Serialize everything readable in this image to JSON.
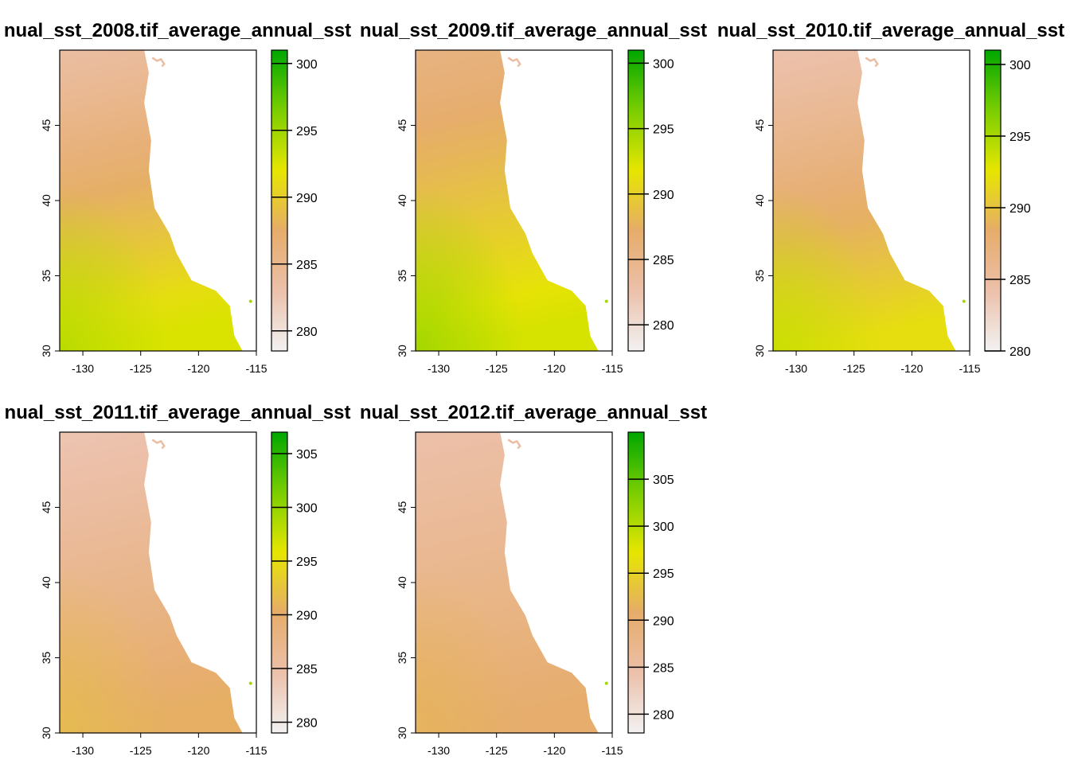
{
  "chart_data": [
    {
      "type": "heatmap",
      "title": "nual_sst_2008.tif_average_annual_sst",
      "x_ticks": [
        -130,
        -125,
        -120,
        -115
      ],
      "y_ticks": [
        30,
        35,
        40,
        45
      ],
      "xlim": [
        -132,
        -115
      ],
      "ylim": [
        30,
        50
      ],
      "legend": {
        "range": [
          278.5,
          301
        ],
        "ticks": [
          280,
          285,
          290,
          295,
          300
        ]
      },
      "field": {
        "north_value": 283.5,
        "south_value": 292.5,
        "west_shift": 0.5
      }
    },
    {
      "type": "heatmap",
      "title": "nual_sst_2009.tif_average_annual_sst",
      "x_ticks": [
        -130,
        -125,
        -120,
        -115
      ],
      "y_ticks": [
        30,
        35,
        40,
        45
      ],
      "xlim": [
        -132,
        -115
      ],
      "ylim": [
        30,
        50
      ],
      "legend": {
        "range": [
          278,
          301
        ],
        "ticks": [
          280,
          285,
          290,
          295,
          300
        ]
      },
      "field": {
        "north_value": 285.5,
        "south_value": 292.5,
        "west_shift": 0.8
      }
    },
    {
      "type": "heatmap",
      "title": "nual_sst_2010.tif_average_annual_sst",
      "x_ticks": [
        -130,
        -125,
        -120,
        -115
      ],
      "y_ticks": [
        30,
        35,
        40,
        45
      ],
      "xlim": [
        -132,
        -115
      ],
      "ylim": [
        30,
        50
      ],
      "legend": {
        "range": [
          280,
          301
        ],
        "ticks": [
          280,
          285,
          290,
          295,
          300
        ]
      },
      "field": {
        "north_value": 284,
        "south_value": 292,
        "west_shift": 0.6
      }
    },
    {
      "type": "heatmap",
      "title": "nual_sst_2011.tif_average_annual_sst",
      "x_ticks": [
        -130,
        -125,
        -120,
        -115
      ],
      "y_ticks": [
        30,
        35,
        40,
        45
      ],
      "xlim": [
        -132,
        -115
      ],
      "ylim": [
        30,
        50
      ],
      "legend": {
        "range": [
          279,
          307
        ],
        "ticks": [
          280,
          285,
          290,
          295,
          300,
          305
        ]
      },
      "field": {
        "north_value": 284,
        "south_value": 290.5,
        "west_shift": 0.4
      }
    },
    {
      "type": "heatmap",
      "title": "nual_sst_2012.tif_average_annual_sst",
      "x_ticks": [
        -130,
        -125,
        -120,
        -115
      ],
      "y_ticks": [
        30,
        35,
        40,
        45
      ],
      "xlim": [
        -132,
        -115
      ],
      "ylim": [
        30,
        50
      ],
      "legend": {
        "range": [
          278,
          310
        ],
        "ticks": [
          280,
          285,
          290,
          295,
          300,
          305
        ]
      },
      "field": {
        "north_value": 284.5,
        "south_value": 290.5,
        "west_shift": 0.4
      }
    }
  ]
}
